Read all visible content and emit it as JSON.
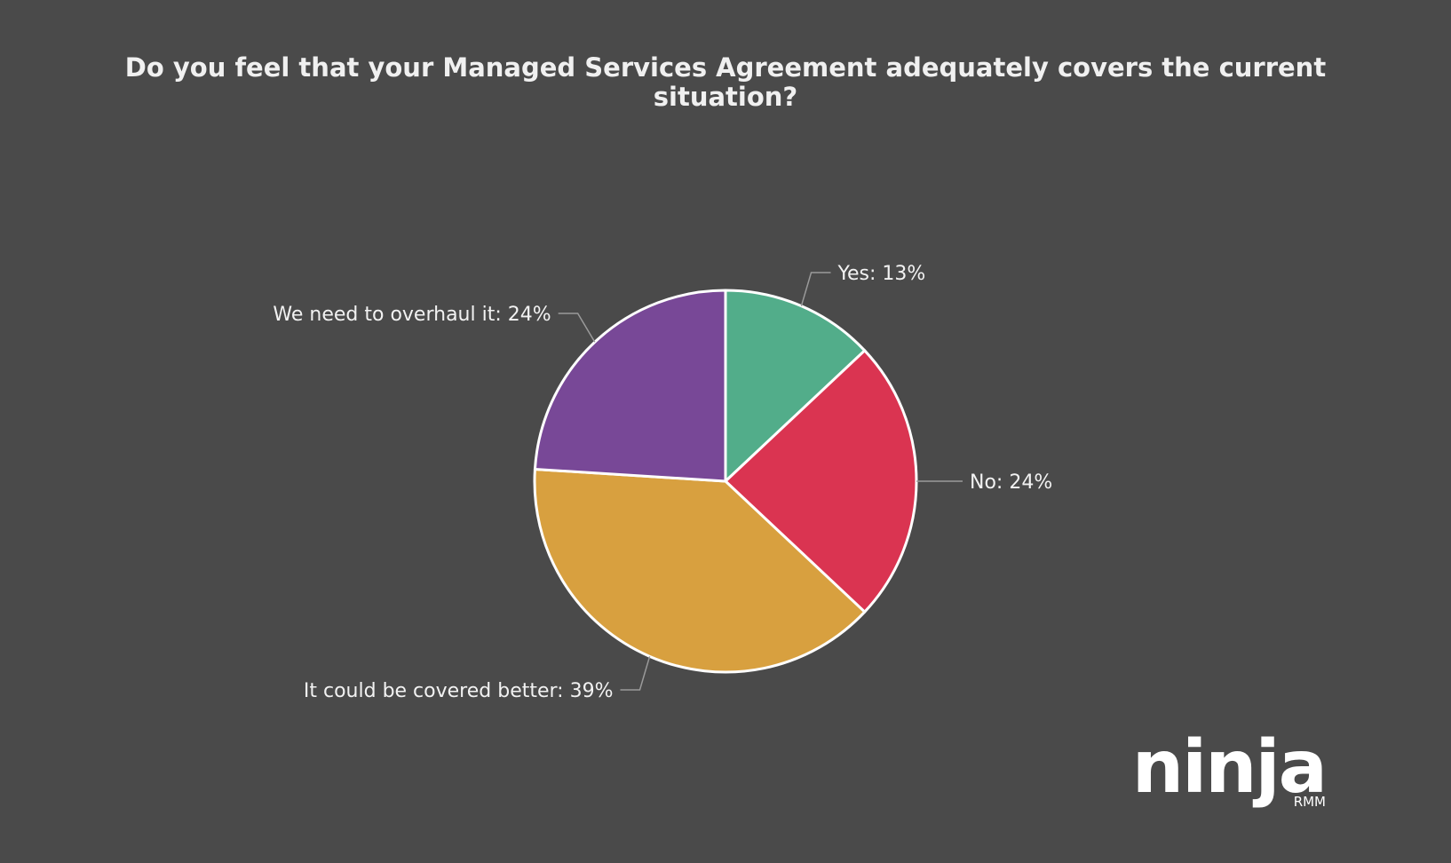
{
  "chart_data": {
    "type": "pie",
    "title": "Do you feel that your Managed Services Agreement adequately covers the current situation?",
    "title_lines": [
      "Do you feel that your Managed Services Agreement adequately covers the current",
      "situation?"
    ],
    "start_angle_deg": 0,
    "direction": "clockwise",
    "slices": [
      {
        "label": "Yes",
        "value": 13,
        "display": "Yes: 13%",
        "color": "#52ad8a"
      },
      {
        "label": "No",
        "value": 24,
        "display": "No: 24%",
        "color": "#da3451"
      },
      {
        "label": "It could be covered better",
        "value": 39,
        "display": "It could be covered better: 39%",
        "color": "#d8a03f"
      },
      {
        "label": "We need to overhaul it",
        "value": 24,
        "display": "We need to overhaul it: 24%",
        "color": "#784897"
      }
    ]
  },
  "branding": {
    "logo_text": "ninja",
    "logo_subtext": "RMM"
  },
  "colors": {
    "background": "#4a4a4a",
    "slice_border": "#ffffff",
    "text": "#f2f2f2"
  }
}
